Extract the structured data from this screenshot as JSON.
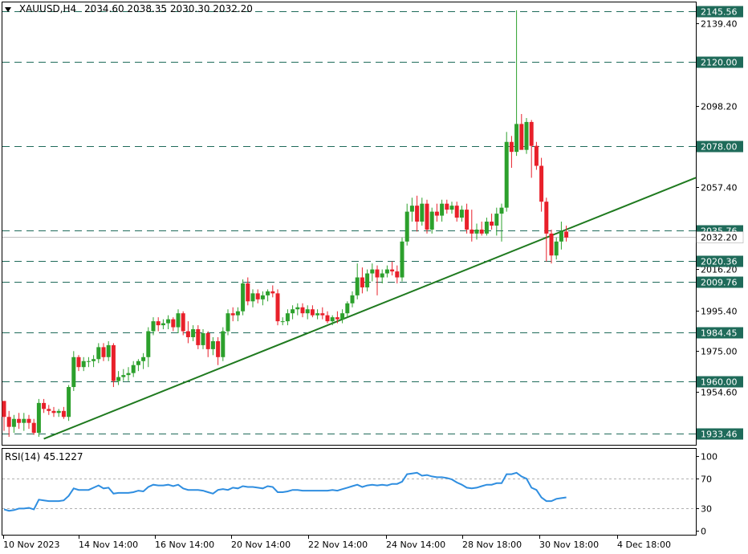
{
  "header": {
    "symbol": "XAUUSD,H4",
    "ohlc": "2034.60 2038.35 2030.30 2032.20"
  },
  "colors": {
    "bull": "#2ca02c",
    "bear": "#e8202a",
    "level_line": "#1f6b5a",
    "trend_line": "#1f7a1f",
    "rsi_line": "#2f8ee0",
    "label_bg": "#1f6b5a"
  },
  "chart_data": [
    {
      "type": "candlestick",
      "x_ticks": [
        "10 Nov 2023",
        "14 Nov 14:00",
        "16 Nov 14:00",
        "20 Nov 14:00",
        "22 Nov 14:00",
        "24 Nov 14:00",
        "28 Nov 18:00",
        "30 Nov 18:00",
        "4 Dec 18:00"
      ],
      "y_ticks": [
        2139.4,
        2098.2,
        2057.4,
        2016.2,
        1995.4,
        1975.0,
        1954.6
      ],
      "ylim": [
        1928,
        2150
      ],
      "current_price": "2032.20",
      "levels": [
        {
          "label": "2145.56",
          "value": 2145.56
        },
        {
          "label": "2120.00",
          "value": 2120.0
        },
        {
          "label": "2078.00",
          "value": 2078.0
        },
        {
          "label": "2035.76",
          "value": 2035.76
        },
        {
          "label": "2020.36",
          "value": 2020.36
        },
        {
          "label": "2009.76",
          "value": 2009.76
        },
        {
          "label": "1984.45",
          "value": 1984.45
        },
        {
          "label": "1960.00",
          "value": 1960.0
        },
        {
          "label": "1933.46",
          "value": 1933.46
        }
      ],
      "trendline": [
        {
          "i": 8,
          "price": 1931
        },
        {
          "i": 127,
          "price": 2050
        }
      ],
      "candles": [
        [
          1950,
          1950,
          1935,
          1942
        ],
        [
          1942,
          1945,
          1932,
          1937
        ],
        [
          1937,
          1943,
          1934,
          1941
        ],
        [
          1941,
          1944,
          1936,
          1939
        ],
        [
          1939,
          1944,
          1935,
          1941
        ],
        [
          1941,
          1943,
          1936,
          1939
        ],
        [
          1939,
          1941,
          1933,
          1934
        ],
        [
          1934,
          1951,
          1932,
          1949
        ],
        [
          1949,
          1951,
          1944,
          1946
        ],
        [
          1946,
          1948,
          1943,
          1945
        ],
        [
          1945,
          1947,
          1942,
          1944
        ],
        [
          1944,
          1946,
          1942,
          1945
        ],
        [
          1945,
          1947,
          1941,
          1942
        ],
        [
          1942,
          1958,
          1940,
          1957
        ],
        [
          1957,
          1975,
          1955,
          1972
        ],
        [
          1972,
          1973,
          1965,
          1967
        ],
        [
          1967,
          1972,
          1965,
          1970
        ],
        [
          1970,
          1972,
          1967,
          1970
        ],
        [
          1970,
          1973,
          1967,
          1971
        ],
        [
          1971,
          1979,
          1969,
          1977
        ],
        [
          1977,
          1979,
          1970,
          1972
        ],
        [
          1972,
          1980,
          1970,
          1978
        ],
        [
          1978,
          1979,
          1957,
          1960
        ],
        [
          1960,
          1965,
          1958,
          1962
        ],
        [
          1962,
          1966,
          1960,
          1963
        ],
        [
          1963,
          1967,
          1960,
          1964
        ],
        [
          1964,
          1970,
          1962,
          1968
        ],
        [
          1968,
          1971,
          1965,
          1970
        ],
        [
          1970,
          1974,
          1966,
          1972
        ],
        [
          1972,
          1987,
          1967,
          1985
        ],
        [
          1985,
          1992,
          1983,
          1990
        ],
        [
          1990,
          1992,
          1985,
          1988
        ],
        [
          1988,
          1991,
          1986,
          1989
        ],
        [
          1989,
          1993,
          1986,
          1991
        ],
        [
          1991,
          1992,
          1985,
          1987
        ],
        [
          1987,
          1996,
          1984,
          1994
        ],
        [
          1994,
          1995,
          1983,
          1985
        ],
        [
          1985,
          1990,
          1979,
          1982
        ],
        [
          1982,
          1988,
          1980,
          1986
        ],
        [
          1986,
          1988,
          1976,
          1978
        ],
        [
          1978,
          1986,
          1976,
          1984
        ],
        [
          1984,
          1985,
          1972,
          1976
        ],
        [
          1976,
          1982,
          1973,
          1980
        ],
        [
          1980,
          1982,
          1968,
          1972
        ],
        [
          1972,
          1987,
          1970,
          1985
        ],
        [
          1985,
          1996,
          1983,
          1994
        ],
        [
          1994,
          1997,
          1990,
          1993
        ],
        [
          1993,
          1997,
          1990,
          1995
        ],
        [
          1995,
          2011,
          1993,
          2009
        ],
        [
          2009,
          2012,
          1998,
          2000
        ],
        [
          2000,
          2006,
          1997,
          2004
        ],
        [
          2004,
          2006,
          1999,
          2001
        ],
        [
          2001,
          2005,
          1998,
          2003
        ],
        [
          2003,
          2006,
          2000,
          2005
        ],
        [
          2005,
          2008,
          2002,
          2004
        ],
        [
          2004,
          2006,
          1988,
          1990
        ],
        [
          1990,
          1992,
          1988,
          1990
        ],
        [
          1990,
          1996,
          1988,
          1994
        ],
        [
          1994,
          1998,
          1991,
          1996
        ],
        [
          1996,
          1999,
          1993,
          1997
        ],
        [
          1997,
          1999,
          1992,
          1994
        ],
        [
          1994,
          1998,
          1991,
          1996
        ],
        [
          1996,
          1998,
          1992,
          1993
        ],
        [
          1993,
          1996,
          1991,
          1994
        ],
        [
          1994,
          1997,
          1991,
          1993
        ],
        [
          1993,
          1995,
          1989,
          1990
        ],
        [
          1990,
          1993,
          1988,
          1992
        ],
        [
          1992,
          1995,
          1989,
          1991
        ],
        [
          1991,
          1996,
          1989,
          1994
        ],
        [
          1994,
          2000,
          1992,
          1999
        ],
        [
          1999,
          2005,
          1997,
          2003
        ],
        [
          2003,
          2019,
          2001,
          2012
        ],
        [
          2012,
          2017,
          2004,
          2007
        ],
        [
          2007,
          2016,
          2005,
          2014
        ],
        [
          2014,
          2019,
          2010,
          2016
        ],
        [
          2016,
          2018,
          2003,
          2012
        ],
        [
          2012,
          2016,
          2009,
          2014
        ],
        [
          2014,
          2018,
          2012,
          2016
        ],
        [
          2016,
          2020,
          2013,
          2015
        ],
        [
          2015,
          2018,
          2009,
          2012
        ],
        [
          2012,
          2032,
          2010,
          2030
        ],
        [
          2030,
          2049,
          2028,
          2045
        ],
        [
          2045,
          2052,
          2040,
          2048
        ],
        [
          2048,
          2053,
          2035,
          2040
        ],
        [
          2040,
          2052,
          2038,
          2049
        ],
        [
          2049,
          2051,
          2034,
          2036
        ],
        [
          2036,
          2047,
          2034,
          2045
        ],
        [
          2045,
          2049,
          2040,
          2043
        ],
        [
          2043,
          2051,
          2040,
          2049
        ],
        [
          2049,
          2051,
          2044,
          2046
        ],
        [
          2046,
          2050,
          2044,
          2048
        ],
        [
          2048,
          2050,
          2040,
          2042
        ],
        [
          2042,
          2048,
          2040,
          2046
        ],
        [
          2046,
          2049,
          2034,
          2036
        ],
        [
          2036,
          2046,
          2030,
          2034
        ],
        [
          2034,
          2039,
          2031,
          2036
        ],
        [
          2036,
          2040,
          2033,
          2034
        ],
        [
          2034,
          2042,
          2033,
          2040
        ],
        [
          2040,
          2044,
          2036,
          2038
        ],
        [
          2038,
          2047,
          2033,
          2044
        ],
        [
          2044,
          2049,
          2030,
          2047
        ],
        [
          2047,
          2085,
          2045,
          2080
        ],
        [
          2080,
          2083,
          2067,
          2075
        ],
        [
          2075,
          2146,
          2073,
          2089
        ],
        [
          2089,
          2094,
          2078,
          2076
        ],
        [
          2076,
          2092,
          2074,
          2090
        ],
        [
          2090,
          2091,
          2062,
          2078
        ],
        [
          2078,
          2080,
          2066,
          2068
        ],
        [
          2068,
          2072,
          2045,
          2050
        ],
        [
          2050,
          2052,
          2020,
          2034
        ],
        [
          2034,
          2036,
          2019,
          2023
        ],
        [
          2023,
          2032,
          2021,
          2030
        ],
        [
          2030,
          2040,
          2026,
          2035
        ],
        [
          2035,
          2038,
          2030,
          2032
        ]
      ]
    },
    {
      "type": "line",
      "title": "RSI(14) 45.1227",
      "y_ticks": [
        100,
        70,
        30,
        0
      ],
      "levels": [
        70,
        30
      ],
      "ylim": [
        -5,
        110
      ],
      "values": [
        29,
        27,
        28,
        30,
        30,
        31,
        29,
        42,
        41,
        40,
        40,
        40,
        41,
        47,
        57,
        55,
        55,
        55,
        58,
        61,
        57,
        58,
        50,
        51,
        51,
        51,
        52,
        54,
        53,
        59,
        62,
        61,
        61,
        62,
        60,
        62,
        57,
        55,
        55,
        55,
        54,
        52,
        50,
        55,
        56,
        55,
        58,
        57,
        60,
        59,
        59,
        58,
        57,
        60,
        59,
        52,
        52,
        53,
        55,
        55,
        54,
        54,
        54,
        54,
        54,
        54,
        55,
        54,
        56,
        58,
        60,
        62,
        59,
        61,
        62,
        61,
        62,
        61,
        63,
        63,
        66,
        76,
        77,
        78,
        74,
        75,
        73,
        72,
        72,
        71,
        69,
        65,
        62,
        58,
        57,
        58,
        60,
        62,
        62,
        64,
        64,
        76,
        76,
        78,
        73,
        70,
        58,
        55,
        45,
        40,
        40,
        43,
        44,
        45
      ]
    }
  ]
}
